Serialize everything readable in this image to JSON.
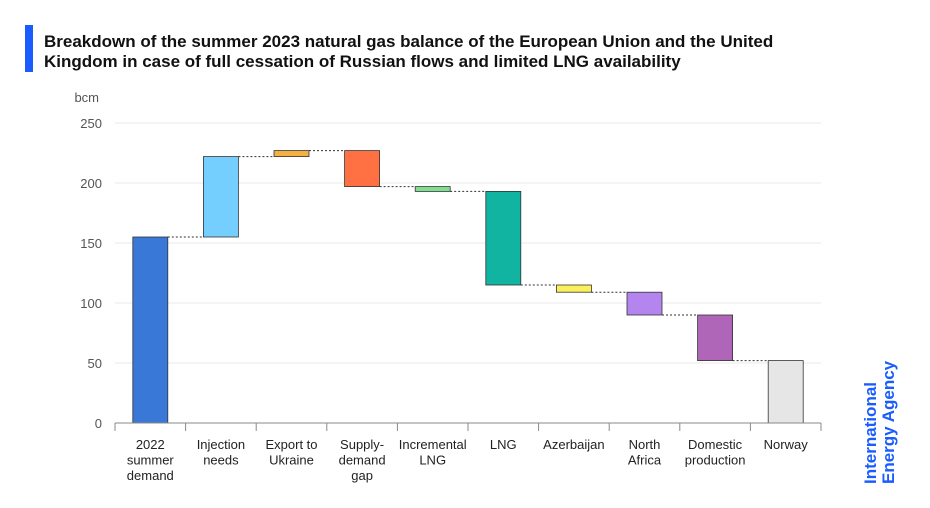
{
  "title": "Breakdown of the summer 2023 natural gas balance of the European Union and the United Kingdom in case of full cessation of Russian flows and limited LNG availability",
  "brand": {
    "line1": "International",
    "line2": "Energy Agency"
  },
  "colors": {
    "accent": "#1a5cff"
  },
  "chart_data": {
    "type": "bar",
    "subtype": "waterfall",
    "unit_label": "bcm",
    "ylim": [
      0,
      250
    ],
    "yticks": [
      0,
      50,
      100,
      150,
      200,
      250
    ],
    "grid": true,
    "categories": [
      [
        "2022",
        "summer",
        "demand"
      ],
      [
        "Injection",
        "needs"
      ],
      [
        "Export to",
        "Ukraine"
      ],
      [
        "Supply-",
        "demand",
        "gap"
      ],
      [
        "Incremental",
        "LNG"
      ],
      [
        "LNG"
      ],
      [
        "Azerbaijan"
      ],
      [
        "North",
        "Africa"
      ],
      [
        "Domestic",
        "production"
      ],
      [
        "Norway"
      ]
    ],
    "bars": [
      {
        "start": 0,
        "end": 155,
        "color": "#3a78d8"
      },
      {
        "start": 155,
        "end": 222,
        "color": "#74cfff"
      },
      {
        "start": 222,
        "end": 227,
        "color": "#f5b041"
      },
      {
        "start": 227,
        "end": 197,
        "color": "#ff7043"
      },
      {
        "start": 197,
        "end": 193,
        "color": "#7de08f"
      },
      {
        "start": 193,
        "end": 115,
        "color": "#11b3a1"
      },
      {
        "start": 115,
        "end": 109,
        "color": "#fbf05a"
      },
      {
        "start": 109,
        "end": 90,
        "color": "#b484ef"
      },
      {
        "start": 90,
        "end": 52,
        "color": "#b066b8"
      },
      {
        "start": 52,
        "end": 0,
        "color": "#e6e6e6"
      }
    ]
  }
}
